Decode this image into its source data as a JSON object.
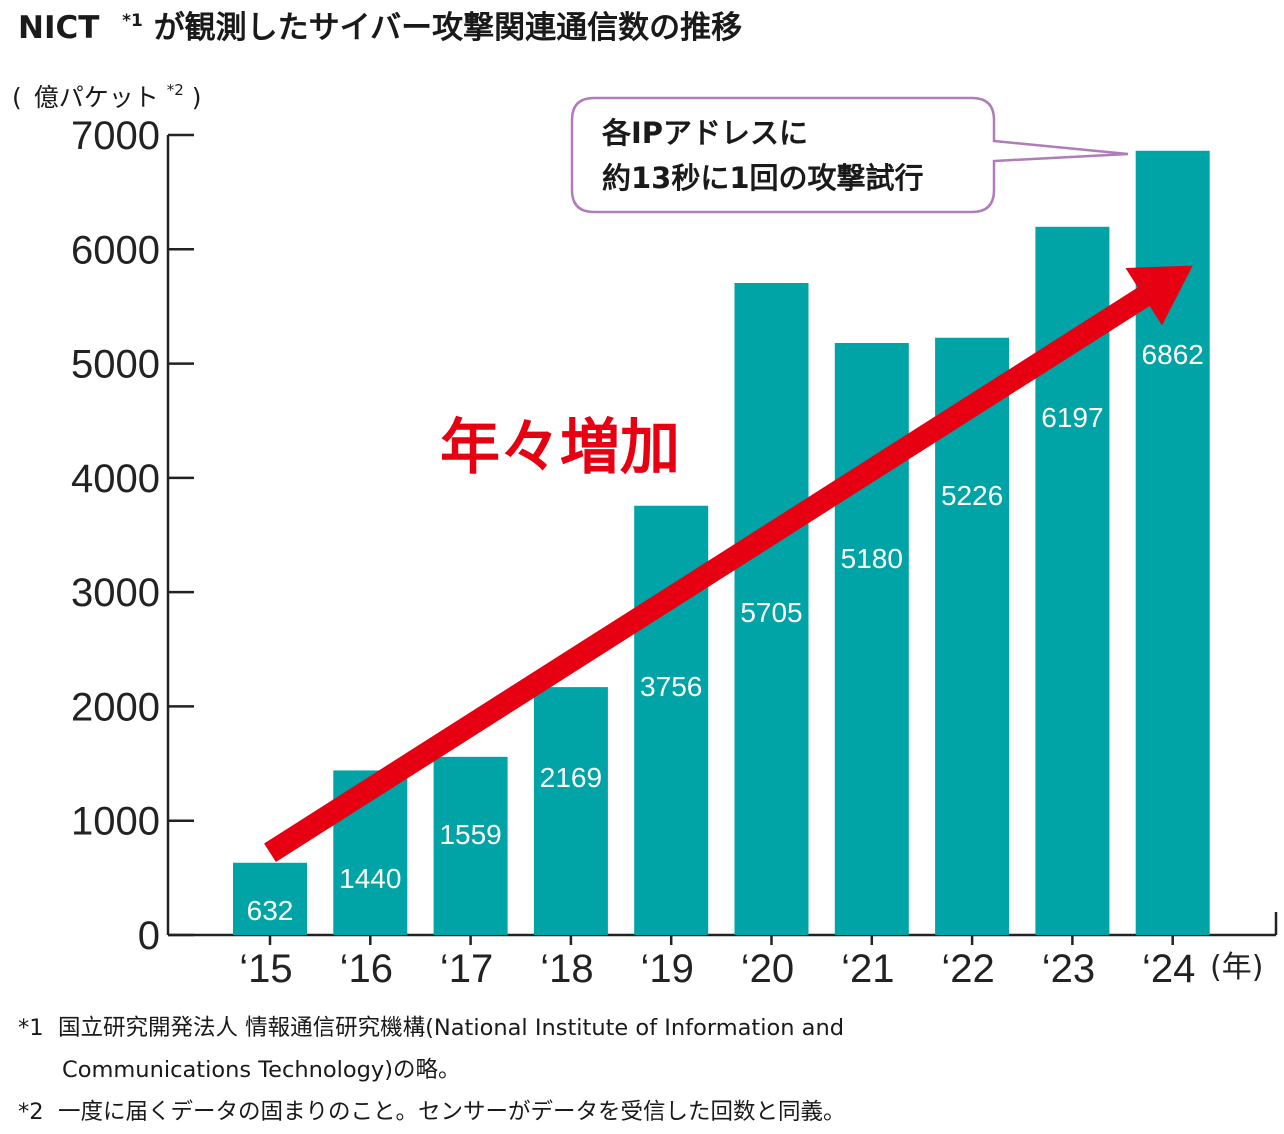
{
  "title": {
    "prefix": "NICT",
    "sup": "*1",
    "main": "が観測したサイバー攻撃関連通信数の推移"
  },
  "y_unit": {
    "open": "(",
    "text": "億パケット",
    "sup": "*2",
    "close": ")"
  },
  "x_unit": "(年)",
  "trend_label": "年々増加",
  "callout": {
    "line1": "各IPアドレスに",
    "line2": "約13秒に1回の攻撃試行"
  },
  "footnotes": {
    "fn1_mark": "*1",
    "fn1_line1": "国立研究開発法人 情報通信研究機構(National Institute of Information and",
    "fn1_line2": "Communications Technology)の略。",
    "fn2_mark": "*2",
    "fn2_text": "一度に届くデータの固まりのこと。センサーがデータを受信した回数と同義。"
  },
  "colors": {
    "bar": "#00a3a6",
    "arrow": "#e60012",
    "callout_border": "#b07cb9",
    "axis": "#222222"
  },
  "chart_data": {
    "type": "bar",
    "categories": [
      "‘15",
      "‘16",
      "‘17",
      "‘18",
      "‘19",
      "‘20",
      "‘21",
      "‘22",
      "‘23",
      "‘24"
    ],
    "values": [
      632,
      1440,
      1559,
      2169,
      3756,
      5705,
      5180,
      5226,
      6197,
      6862
    ],
    "value_labels": [
      "632",
      "1440",
      "1559",
      "2169",
      "3756",
      "5705",
      "5180",
      "5226",
      "6197",
      "6862"
    ],
    "y_ticks": [
      0,
      1000,
      2000,
      3000,
      4000,
      5000,
      6000,
      7000
    ],
    "y_tick_labels": [
      "0",
      "1000",
      "2000",
      "3000",
      "4000",
      "5000",
      "6000",
      "7000"
    ],
    "ylim": [
      0,
      7000
    ],
    "grid": false,
    "legend": "none",
    "trend_arrow": {
      "from": {
        "category_index": 0,
        "value": 632
      },
      "to": {
        "category_index": 9,
        "value": 6400
      }
    }
  }
}
